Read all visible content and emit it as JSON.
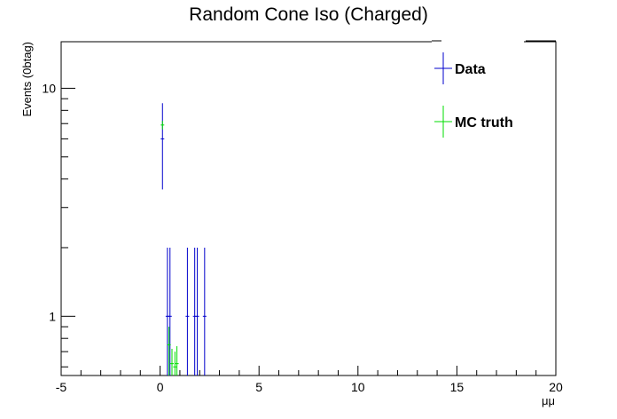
{
  "chart_data": {
    "type": "scatter",
    "title": "Random Cone Iso (Charged)",
    "xlabel": "μμ",
    "ylabel": "Events (0btag)",
    "xlim": [
      -5,
      20
    ],
    "ylim": [
      0.55,
      16
    ],
    "ylog": true,
    "xticks": [
      "-5",
      "0",
      "5",
      "10",
      "15",
      "20"
    ],
    "yticks": [
      {
        "value": 1,
        "label": "1"
      },
      {
        "value": 10,
        "label": "10"
      }
    ],
    "grid": false,
    "legend_position": "top-right",
    "series": [
      {
        "name": "Data",
        "color": "#0000cc",
        "points": [
          {
            "x": 0.12,
            "y": 6,
            "ylo": 3.6,
            "yhi": 8.6
          },
          {
            "x": 0.37,
            "y": 1,
            "ylo": 0.55,
            "yhi": 2
          },
          {
            "x": 0.5,
            "y": 1,
            "ylo": 0.55,
            "yhi": 2
          },
          {
            "x": 1.38,
            "y": 1,
            "ylo": 0.55,
            "yhi": 2
          },
          {
            "x": 1.75,
            "y": 1,
            "ylo": 0.55,
            "yhi": 2
          },
          {
            "x": 1.88,
            "y": 1,
            "ylo": 0.55,
            "yhi": 2
          },
          {
            "x": 2.25,
            "y": 1,
            "ylo": 0.55,
            "yhi": 2
          }
        ]
      },
      {
        "name": "MC truth",
        "color": "#00dd00",
        "points": [
          {
            "x": 0.12,
            "y": 6.9,
            "ylo": 6.6,
            "yhi": 7.2
          },
          {
            "x": 0.45,
            "y": 0.75,
            "ylo": 0.55,
            "yhi": 0.9
          },
          {
            "x": 0.6,
            "y": 0.62,
            "ylo": 0.55,
            "yhi": 0.72
          },
          {
            "x": 0.75,
            "y": 0.6,
            "ylo": 0.55,
            "yhi": 0.7
          },
          {
            "x": 0.85,
            "y": 0.62,
            "ylo": 0.55,
            "yhi": 0.74
          }
        ]
      }
    ]
  }
}
